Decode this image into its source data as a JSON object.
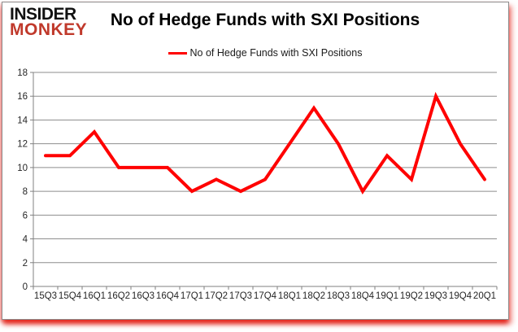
{
  "header": {
    "logo_line1": "INSIDER",
    "logo_line2": "MONKEY",
    "title": "No of Hedge Funds with SXI Positions"
  },
  "legend": {
    "label": "No of Hedge Funds with SXI Positions"
  },
  "chart_data": {
    "type": "line",
    "title": "No of Hedge Funds with SXI Positions",
    "categories": [
      "15Q3",
      "15Q4",
      "16Q1",
      "16Q2",
      "16Q3",
      "16Q4",
      "17Q1",
      "17Q2",
      "17Q3",
      "17Q4",
      "18Q1",
      "18Q2",
      "18Q3",
      "18Q4",
      "19Q1",
      "19Q2",
      "19Q3",
      "19Q4",
      "20Q1"
    ],
    "values": [
      11,
      11,
      13,
      10,
      10,
      10,
      8,
      9,
      8,
      9,
      12,
      15,
      12,
      8,
      11,
      9,
      16,
      12,
      9
    ],
    "xlabel": "",
    "ylabel": "",
    "ylim": [
      0,
      18
    ],
    "ytick_step": 2,
    "grid": true,
    "legend_position": "top",
    "line_color": "#ff0000"
  },
  "colors": {
    "logo_red": "#c0392b",
    "series_red": "#ff0000",
    "gridline": "#8e8e8e",
    "axis": "#808080",
    "text": "#262626"
  }
}
